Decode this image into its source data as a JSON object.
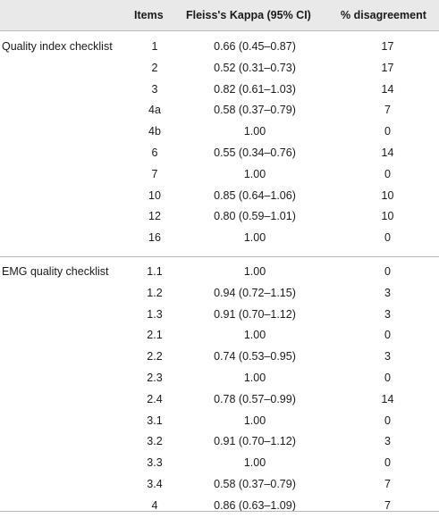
{
  "headers": {
    "group": "",
    "items": "Items",
    "kappa": "Fleiss's Kappa (95% CI)",
    "disagreement": "% disagreement"
  },
  "sections": [
    {
      "name": "Quality index checklist",
      "rows": [
        {
          "item": "1",
          "kappa": "0.66 (0.45–0.87)",
          "dis": "17"
        },
        {
          "item": "2",
          "kappa": "0.52 (0.31–0.73)",
          "dis": "17"
        },
        {
          "item": "3",
          "kappa": "0.82 (0.61–1.03)",
          "dis": "14"
        },
        {
          "item": "4a",
          "kappa": "0.58 (0.37–0.79)",
          "dis": "7"
        },
        {
          "item": "4b",
          "kappa": "1.00",
          "dis": "0"
        },
        {
          "item": "6",
          "kappa": "0.55 (0.34–0.76)",
          "dis": "14"
        },
        {
          "item": "7",
          "kappa": "1.00",
          "dis": "0"
        },
        {
          "item": "10",
          "kappa": "0.85 (0.64–1.06)",
          "dis": "10"
        },
        {
          "item": "12",
          "kappa": "0.80 (0.59–1.01)",
          "dis": "10"
        },
        {
          "item": "16",
          "kappa": "1.00",
          "dis": "0"
        }
      ]
    },
    {
      "name": "EMG quality checklist",
      "rows": [
        {
          "item": "1.1",
          "kappa": "1.00",
          "dis": "0"
        },
        {
          "item": "1.2",
          "kappa": "0.94 (0.72–1.15)",
          "dis": "3"
        },
        {
          "item": "1.3",
          "kappa": "0.91 (0.70–1.12)",
          "dis": "3"
        },
        {
          "item": "2.1",
          "kappa": "1.00",
          "dis": "0"
        },
        {
          "item": "2.2",
          "kappa": "0.74 (0.53–0.95)",
          "dis": "3"
        },
        {
          "item": "2.3",
          "kappa": "1.00",
          "dis": "0"
        },
        {
          "item": "2.4",
          "kappa": "0.78 (0.57–0.99)",
          "dis": "14"
        },
        {
          "item": "3.1",
          "kappa": "1.00",
          "dis": "0"
        },
        {
          "item": "3.2",
          "kappa": "0.91 (0.70–1.12)",
          "dis": "3"
        },
        {
          "item": "3.3",
          "kappa": "1.00",
          "dis": "0"
        },
        {
          "item": "3.4",
          "kappa": "0.58 (0.37–0.79)",
          "dis": "7"
        },
        {
          "item": "4",
          "kappa": "0.86 (0.63–1.09)",
          "dis": "7"
        }
      ]
    }
  ]
}
